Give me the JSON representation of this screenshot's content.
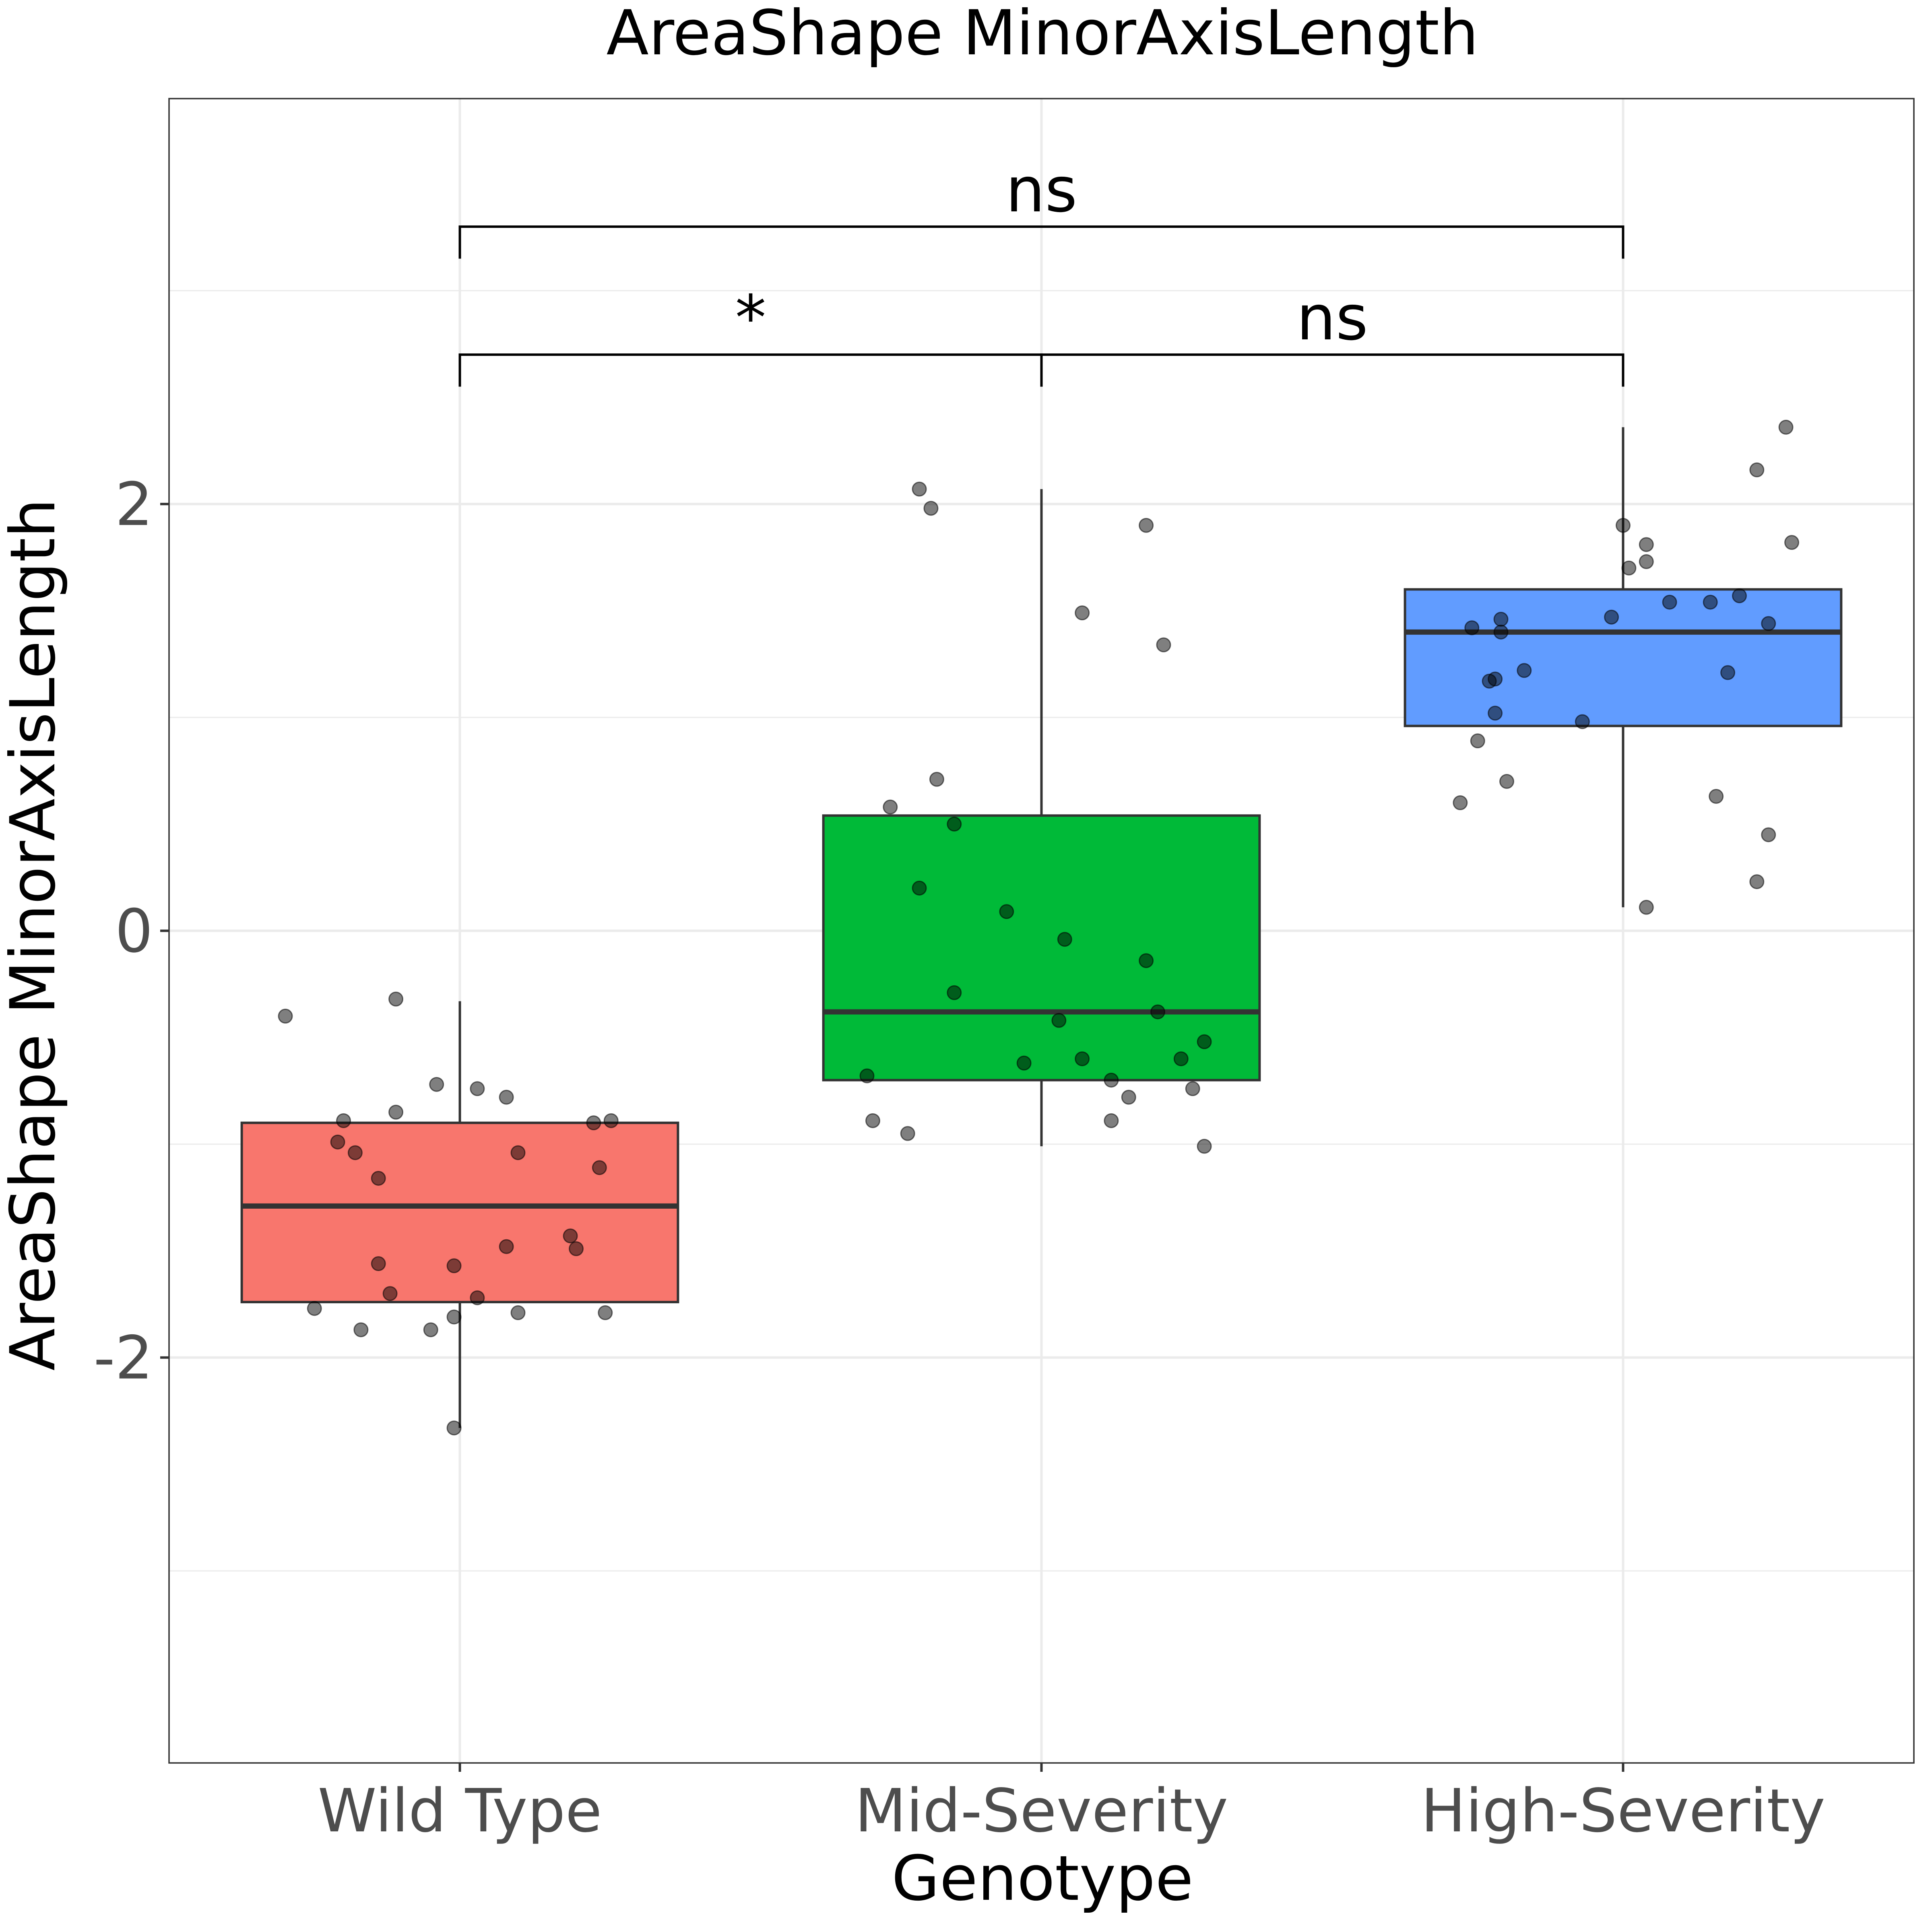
{
  "chart_data": {
    "type": "box",
    "title": "AreaShape MinorAxisLength",
    "xlabel": "Genotype",
    "ylabel": "AreaShape MinorAxisLength",
    "ylim": [
      -3.9,
      3.9
    ],
    "yticks": [
      -2,
      0,
      2
    ],
    "grid": true,
    "legend": "none",
    "categories": [
      "Wild Type",
      "Mid-Severity",
      "High-Severity"
    ],
    "series": [
      {
        "category": "Wild Type",
        "color": "#F8766D",
        "box": {
          "q1": -1.74,
          "median": -1.29,
          "q3": -0.9,
          "whisker_low": -2.33,
          "whisker_high": -0.33
        },
        "points": [
          [
            -0.3,
            -0.4
          ],
          [
            -0.11,
            -0.32
          ],
          [
            -0.04,
            -0.72
          ],
          [
            0.03,
            -0.74
          ],
          [
            0.08,
            -0.78
          ],
          [
            -0.2,
            -0.89
          ],
          [
            -0.11,
            -0.85
          ],
          [
            0.23,
            -0.9
          ],
          [
            0.26,
            -0.89
          ],
          [
            -0.21,
            -0.99
          ],
          [
            -0.18,
            -1.04
          ],
          [
            0.1,
            -1.04
          ],
          [
            0.24,
            -1.11
          ],
          [
            -0.14,
            -1.16
          ],
          [
            0.19,
            -1.43
          ],
          [
            0.08,
            -1.48
          ],
          [
            0.2,
            -1.49
          ],
          [
            -0.14,
            -1.56
          ],
          [
            -0.01,
            -1.57
          ],
          [
            -0.12,
            -1.7
          ],
          [
            0.03,
            -1.72
          ],
          [
            -0.25,
            -1.77
          ],
          [
            0.1,
            -1.79
          ],
          [
            0.25,
            -1.79
          ],
          [
            -0.01,
            -1.81
          ],
          [
            -0.17,
            -1.87
          ],
          [
            -0.05,
            -1.87
          ],
          [
            -0.01,
            -2.33
          ]
        ]
      },
      {
        "category": "Mid-Severity",
        "color": "#00BA38",
        "box": {
          "q1": -0.7,
          "median": -0.38,
          "q3": 0.54,
          "whisker_low": -1.01,
          "whisker_high": 2.07
        },
        "points": [
          [
            -0.21,
            2.07
          ],
          [
            -0.19,
            1.98
          ],
          [
            0.18,
            1.9
          ],
          [
            0.07,
            1.49
          ],
          [
            0.21,
            1.34
          ],
          [
            -0.18,
            0.71
          ],
          [
            -0.26,
            0.58
          ],
          [
            -0.15,
            0.5
          ],
          [
            -0.21,
            0.2
          ],
          [
            -0.06,
            0.09
          ],
          [
            0.04,
            -0.04
          ],
          [
            0.18,
            -0.14
          ],
          [
            -0.15,
            -0.29
          ],
          [
            0.2,
            -0.38
          ],
          [
            0.03,
            -0.42
          ],
          [
            0.28,
            -0.52
          ],
          [
            -0.03,
            -0.62
          ],
          [
            0.07,
            -0.6
          ],
          [
            0.24,
            -0.6
          ],
          [
            -0.3,
            -0.68
          ],
          [
            0.12,
            -0.7
          ],
          [
            0.26,
            -0.74
          ],
          [
            0.15,
            -0.78
          ],
          [
            -0.29,
            -0.89
          ],
          [
            0.12,
            -0.89
          ],
          [
            -0.23,
            -0.95
          ],
          [
            0.28,
            -1.01
          ]
        ]
      },
      {
        "category": "High-Severity",
        "color": "#619CFF",
        "box": {
          "q1": 0.96,
          "median": 1.4,
          "q3": 1.6,
          "whisker_low": 0.11,
          "whisker_high": 2.36
        },
        "points": [
          [
            0.28,
            2.36
          ],
          [
            0.23,
            2.16
          ],
          [
            0.29,
            1.82
          ],
          [
            0.0,
            1.9
          ],
          [
            0.04,
            1.81
          ],
          [
            0.04,
            1.73
          ],
          [
            0.01,
            1.7
          ],
          [
            0.2,
            1.57
          ],
          [
            0.15,
            1.54
          ],
          [
            0.08,
            1.54
          ],
          [
            -0.02,
            1.47
          ],
          [
            -0.21,
            1.46
          ],
          [
            0.25,
            1.44
          ],
          [
            -0.26,
            1.42
          ],
          [
            -0.21,
            1.4
          ],
          [
            -0.17,
            1.22
          ],
          [
            0.18,
            1.21
          ],
          [
            -0.22,
            1.18
          ],
          [
            -0.23,
            1.17
          ],
          [
            -0.22,
            1.02
          ],
          [
            -0.07,
            0.98
          ],
          [
            -0.25,
            0.89
          ],
          [
            -0.2,
            0.7
          ],
          [
            0.16,
            0.63
          ],
          [
            -0.28,
            0.6
          ],
          [
            0.25,
            0.45
          ],
          [
            0.23,
            0.23
          ],
          [
            0.04,
            0.11
          ]
        ]
      }
    ],
    "comparisons": [
      {
        "from": "Wild Type",
        "to": "Mid-Severity",
        "label": "*",
        "y": 2.7,
        "tick_to": 2.55
      },
      {
        "from": "Mid-Severity",
        "to": "High-Severity",
        "label": "ns",
        "y": 2.7,
        "tick_to": 2.55
      },
      {
        "from": "Wild Type",
        "to": "High-Severity",
        "label": "ns",
        "y": 3.3,
        "tick_to": 3.15
      }
    ]
  }
}
